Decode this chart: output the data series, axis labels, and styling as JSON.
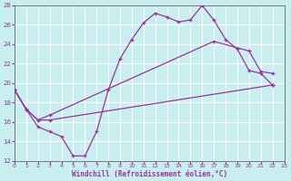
{
  "xlabel": "Windchill (Refroidissement éolien,°C)",
  "xlim": [
    0,
    23
  ],
  "ylim": [
    12,
    28
  ],
  "yticks": [
    12,
    14,
    16,
    18,
    20,
    22,
    24,
    26,
    28
  ],
  "xticks": [
    0,
    1,
    2,
    3,
    4,
    5,
    6,
    7,
    8,
    9,
    10,
    11,
    12,
    13,
    14,
    15,
    16,
    17,
    18,
    19,
    20,
    21,
    22,
    23
  ],
  "bg_color": "#c8eef0",
  "line_color": "#993399",
  "grid_color": "#ffffff",
  "line1_x": [
    0,
    1,
    2,
    3,
    4,
    5,
    6,
    7,
    8,
    9,
    10,
    11,
    12,
    13,
    14,
    15,
    16,
    17,
    18,
    19,
    20,
    21,
    22
  ],
  "line1_y": [
    19.3,
    17.3,
    15.5,
    15.0,
    14.5,
    12.5,
    12.5,
    15.0,
    19.3,
    22.5,
    24.5,
    26.2,
    27.2,
    26.8,
    26.3,
    26.5,
    28.0,
    26.5,
    24.5,
    23.5,
    21.3,
    21.0,
    19.8
  ],
  "line2_x": [
    0,
    1,
    2,
    3,
    22
  ],
  "line2_y": [
    19.3,
    17.3,
    16.2,
    16.2,
    19.8
  ],
  "line3_x": [
    0,
    1,
    2,
    3,
    17,
    20,
    21,
    22
  ],
  "line3_y": [
    19.3,
    17.3,
    16.2,
    16.7,
    24.3,
    23.3,
    21.2,
    21.0
  ],
  "line4_x": [
    0,
    22
  ],
  "line4_y": [
    19.3,
    19.8
  ]
}
